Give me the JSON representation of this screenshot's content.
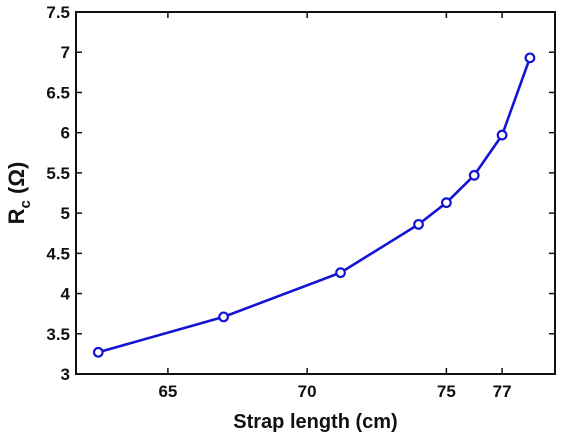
{
  "chart_data": {
    "type": "line",
    "title": "",
    "xlabel": "Strap length (cm)",
    "ylabel": {
      "main": "R",
      "subscript": "c",
      "unit": " (Ω)"
    },
    "xlim": [
      61.7,
      78.9
    ],
    "ylim": [
      3,
      7.5
    ],
    "x_ticks": [
      65,
      70,
      75,
      77
    ],
    "y_ticks": [
      3,
      3.5,
      4,
      4.5,
      5,
      5.5,
      6,
      6.5,
      7,
      7.5
    ],
    "grid": false,
    "legend": "none",
    "series": [
      {
        "color": "#1414d4",
        "marker": "circle",
        "points": [
          {
            "x": 62.5,
            "y": 3.27
          },
          {
            "x": 67.0,
            "y": 3.71
          },
          {
            "x": 71.2,
            "y": 4.26
          },
          {
            "x": 74.0,
            "y": 4.86
          },
          {
            "x": 75.0,
            "y": 5.13
          },
          {
            "x": 76.0,
            "y": 5.47
          },
          {
            "x": 77.0,
            "y": 5.97
          },
          {
            "x": 78.0,
            "y": 6.93
          }
        ]
      }
    ]
  }
}
